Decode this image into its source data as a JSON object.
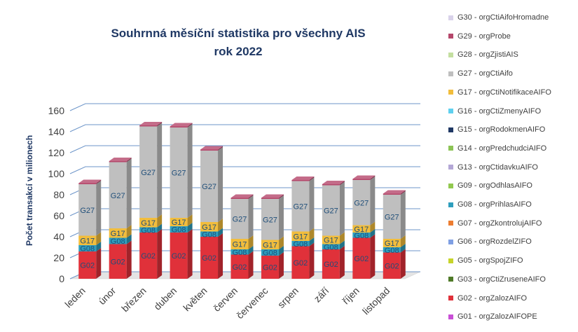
{
  "chart_data": {
    "type": "bar",
    "stacked": true,
    "three_d": true,
    "title": "Souhrnná měsíční statistika pro všechny AIS",
    "subtitle": "rok 2022",
    "ylabel": "Počet transakcí v milionech",
    "xlabel": "",
    "ylim": [
      0,
      160
    ],
    "yticks": [
      0,
      20,
      40,
      60,
      80,
      100,
      120,
      140,
      160
    ],
    "grid": true,
    "legend_position": "right",
    "categories": [
      "leden",
      "únor",
      "březen",
      "duben",
      "květen",
      "červen",
      "červenec",
      "srpen",
      "září",
      "říjen",
      "listopad"
    ],
    "series": [
      {
        "name": "G02 - orgZalozAIFO",
        "code": "G02",
        "color": "#e0313a",
        "values": [
          26,
          33,
          44,
          44,
          40,
          23,
          22,
          31,
          28,
          39,
          25
        ]
      },
      {
        "name": "G08 - orgPrihlasAIFO",
        "code": "G08",
        "color": "#2e9ebd",
        "values": [
          6,
          6,
          5,
          6,
          5,
          5,
          6,
          5,
          5,
          5,
          5
        ]
      },
      {
        "name": "G17 - orgCtiNotifikaceAIFO",
        "code": "G17",
        "color": "#f2bd3c",
        "values": [
          9,
          9,
          9,
          8,
          9,
          10,
          9,
          9,
          8,
          7,
          8
        ]
      },
      {
        "name": "G27 - orgCtiAifo",
        "code": "G27",
        "color": "#bfbfbf",
        "values": [
          49,
          63,
          87,
          86,
          68,
          38,
          39,
          48,
          48,
          43,
          42
        ]
      },
      {
        "name": "G29 - orgProbe",
        "code": "G29",
        "color": "#b5476b",
        "values": [
          1,
          1,
          1,
          1,
          1,
          1,
          1,
          1,
          1,
          1,
          1
        ]
      }
    ],
    "legend": [
      {
        "label": "G30 - orgCtiAifoHromadne",
        "color": "#d9d2ea"
      },
      {
        "label": "G29 - orgProbe",
        "color": "#b5476b"
      },
      {
        "label": "G28 - orgZjistiAIS",
        "color": "#c4dfa0"
      },
      {
        "label": "G27 - orgCtiAifo",
        "color": "#bfbfbf"
      },
      {
        "label": "G17 - orgCtiNotifikaceAIFO",
        "color": "#f2bd3c"
      },
      {
        "label": "G16 - orgCtiZmenyAIFO",
        "color": "#5fd0ef"
      },
      {
        "label": "G15 - orgRodokmenAIFO",
        "color": "#1f3864"
      },
      {
        "label": "G14 - orgPredchudciAIFO",
        "color": "#8cc455"
      },
      {
        "label": "G13 - orgCtidavkuAIFO",
        "color": "#b4a7d6"
      },
      {
        "label": "G09 - orgOdhlasAIFO",
        "color": "#92c94f"
      },
      {
        "label": "G08 - orgPrihlasAIFO",
        "color": "#2e9ebd"
      },
      {
        "label": "G07 - orgZkontrolujAIFO",
        "color": "#ed7d31"
      },
      {
        "label": "G06 - orgRozdelZIFO",
        "color": "#7f9fe3"
      },
      {
        "label": "G05 - orgSpojZIFO",
        "color": "#c7d42a"
      },
      {
        "label": "G03 - orgCtiZruseneAIFO",
        "color": "#4f7a28"
      },
      {
        "label": "G02 - orgZalozAIFO",
        "color": "#e0313a"
      },
      {
        "label": "G01 - orgZalozAIFOPE",
        "color": "#c94fd6"
      }
    ]
  }
}
